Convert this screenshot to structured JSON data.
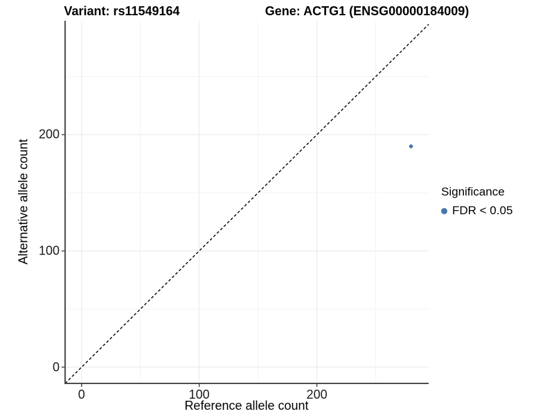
{
  "chart_data": {
    "type": "scatter",
    "title_variant": "Variant: rs11549164",
    "title_gene": "Gene: ACTG1 (ENSG00000184009)",
    "xlabel": "Reference allele count",
    "ylabel": "Alternative allele count",
    "xlim": [
      -14,
      295
    ],
    "ylim": [
      -14,
      298
    ],
    "x_major_ticks": [
      0,
      100,
      200
    ],
    "y_major_ticks": [
      0,
      100,
      200
    ],
    "x_minor_ticks": [
      50,
      150,
      250
    ],
    "y_minor_ticks": [
      50,
      150,
      250
    ],
    "grid": "major+minor",
    "identity_line": {
      "slope": 1,
      "intercept": 0,
      "style": "dashed",
      "color": "#000000"
    },
    "series": [
      {
        "name": "FDR < 0.05",
        "color": "#4878ab",
        "point_radius": 2.8,
        "points": [
          {
            "x": 280,
            "y": 190
          }
        ]
      }
    ],
    "legend": {
      "title": "Significance",
      "position": "right",
      "entries": [
        {
          "label": "FDR < 0.05",
          "color": "#4878ab"
        }
      ]
    },
    "colors": {
      "point": "#4878ab",
      "grid_major": "#ececec",
      "grid_minor": "#f4f4f4",
      "axis_line": "#4d4d4d",
      "tick_mark": "#4d4d4d",
      "dashed_line": "#000000",
      "background": "#ffffff"
    }
  }
}
